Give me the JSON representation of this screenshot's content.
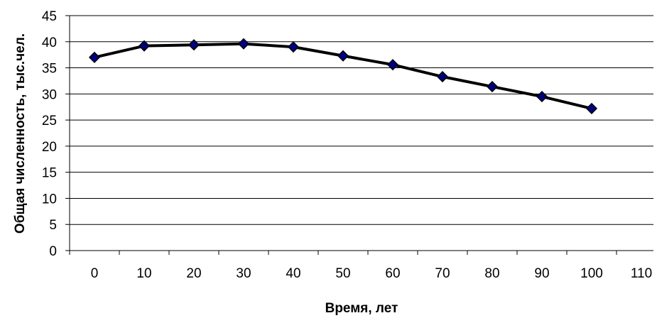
{
  "chart_data": {
    "type": "line",
    "title": "",
    "xlabel": "Время, лет",
    "ylabel": "Общая численность, тыс.чел.",
    "x_ticks": [
      "0",
      "10",
      "20",
      "30",
      "40",
      "50",
      "60",
      "70",
      "80",
      "90",
      "100",
      "110"
    ],
    "y_ticks": [
      "0",
      "5",
      "10",
      "15",
      "20",
      "25",
      "30",
      "35",
      "40",
      "45"
    ],
    "ylim": [
      0,
      45
    ],
    "grid": "horizontal",
    "legend": "none",
    "series": [
      {
        "x": [
          0,
          10,
          20,
          30,
          40,
          50,
          60,
          70,
          80,
          90,
          100
        ],
        "values": [
          37.0,
          39.2,
          39.4,
          39.6,
          39.0,
          37.3,
          35.6,
          33.3,
          31.4,
          29.5,
          27.2
        ],
        "line_color": "#000000",
        "marker_color": "#000080",
        "marker": "diamond"
      }
    ]
  }
}
